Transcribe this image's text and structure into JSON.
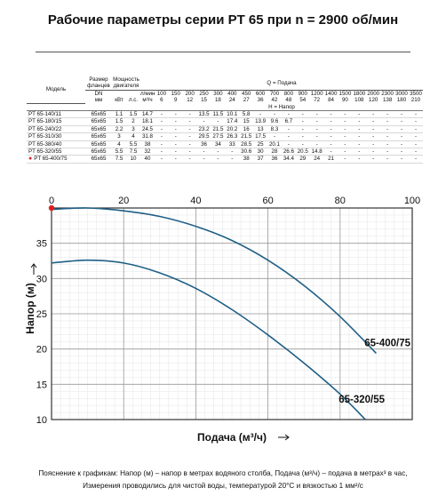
{
  "title": "Рабочие параметры серии PT 65 при n = 2900 об/мин",
  "table": {
    "col_model": "Модель",
    "col_flange": "Размер фланцев",
    "col_flange_dn": "DN",
    "col_flange_unit": "мм",
    "col_power": "Мощность двигателя",
    "col_kw": "кВт",
    "col_hp": "л.с.",
    "q_header": "Q = Подача",
    "h_header": "H = Напор",
    "row_lmin_label": "л/мин",
    "row_m3h_label": "м³/ч",
    "lmin_values": [
      "0",
      "100",
      "150",
      "200",
      "250",
      "300",
      "400",
      "450",
      "600",
      "700",
      "800",
      "900",
      "1200",
      "1400",
      "1500",
      "1800",
      "2000",
      "2300",
      "3000",
      "3500"
    ],
    "m3h_values": [
      "0",
      "6",
      "9",
      "12",
      "15",
      "18",
      "24",
      "27",
      "36",
      "42",
      "48",
      "54",
      "72",
      "84",
      "90",
      "108",
      "120",
      "138",
      "180",
      "210"
    ],
    "rows": [
      {
        "model": "PT 65-140/11",
        "flange": "65x65",
        "kw": "1.1",
        "hp": "1.5",
        "h": [
          "14.7",
          "-",
          "-",
          "-",
          "13.5",
          "11.5",
          "10.1",
          "5.8",
          "-",
          "-",
          "-",
          "-",
          "-",
          "-",
          "-",
          "-",
          "-",
          "-",
          "-",
          "-"
        ]
      },
      {
        "model": "PT 65-180/15",
        "flange": "65x65",
        "kw": "1.5",
        "hp": "2",
        "h": [
          "18.1",
          "-",
          "-",
          "-",
          "-",
          "-",
          "17.4",
          "15",
          "13.9",
          "9.6",
          "6.7",
          "-",
          "-",
          "-",
          "-",
          "-",
          "-",
          "-",
          "-",
          "-"
        ]
      },
      {
        "model": "PT 65-240/22",
        "flange": "65x65",
        "kw": "2.2",
        "hp": "3",
        "h": [
          "24.5",
          "-",
          "-",
          "-",
          "23.2",
          "21.5",
          "20.2",
          "16",
          "13",
          "8.3",
          "-",
          "-",
          "-",
          "-",
          "-",
          "-",
          "-",
          "-",
          "-",
          "-"
        ]
      },
      {
        "model": "PT 65-310/30",
        "flange": "65x65",
        "kw": "3",
        "hp": "4",
        "h": [
          "31.8",
          "-",
          "-",
          "-",
          "29.5",
          "27.5",
          "26.3",
          "21.5",
          "17.5",
          "-",
          "-",
          "-",
          "-",
          "-",
          "-",
          "-",
          "-",
          "-",
          "-",
          "-"
        ]
      },
      {
        "model": "PT 65-380/40",
        "flange": "65x65",
        "kw": "4",
        "hp": "5.5",
        "h": [
          "38",
          "-",
          "-",
          "-",
          "36",
          "34",
          "33",
          "28.5",
          "25",
          "20.1",
          "-",
          "-",
          "-",
          "-",
          "-",
          "-",
          "-",
          "-",
          "-",
          "-"
        ]
      },
      {
        "model": "PT 65-320/55",
        "flange": "65x65",
        "kw": "5.5",
        "hp": "7.5",
        "h": [
          "32",
          "-",
          "-",
          "-",
          "-",
          "-",
          "-",
          "30.6",
          "30",
          "28",
          "26.6",
          "20.5",
          "14.8",
          "-",
          "-",
          "-",
          "-",
          "-",
          "-",
          "-"
        ]
      },
      {
        "model": "PT 65-400/75",
        "flange": "65x65",
        "kw": "7.5",
        "hp": "10",
        "h": [
          "40",
          "-",
          "-",
          "-",
          "-",
          "-",
          "-",
          "38",
          "37",
          "36",
          "34.4",
          "29",
          "24",
          "21",
          "-",
          "-",
          "-",
          "-",
          "-",
          "-"
        ],
        "marked": true
      }
    ]
  },
  "chart_data": {
    "type": "line",
    "xlabel": "Подача (м³/ч)",
    "ylabel": "Напор (м)",
    "xlim": [
      0,
      100
    ],
    "ylim": [
      10,
      40
    ],
    "x_ticks": [
      "0",
      "20",
      "40",
      "60",
      "80",
      "100"
    ],
    "y_ticks": [
      "10",
      "15",
      "20",
      "25",
      "30",
      "35"
    ],
    "grid": true,
    "marker_point": {
      "x": 0,
      "y": 40
    },
    "series": [
      {
        "name": "65-400/75",
        "color": "#1f5f86",
        "x": [
          0,
          10,
          20,
          30,
          40,
          50,
          60,
          70,
          80,
          90
        ],
        "y": [
          39.8,
          40,
          39.6,
          38.8,
          37.4,
          35.4,
          32.6,
          29,
          24.6,
          19.4
        ]
      },
      {
        "name": "65-320/55",
        "color": "#1f5f86",
        "x": [
          0,
          10,
          20,
          30,
          40,
          50,
          60,
          70,
          80,
          87
        ],
        "y": [
          32.2,
          32.6,
          32.2,
          30.8,
          28.6,
          25.6,
          22,
          18,
          13.6,
          10
        ]
      }
    ]
  },
  "note": {
    "line1": "Пояснение к графикам: Напор (м) – напор в метрах водяного столба, Подача (м³/ч) – подача в метрах³ в час,",
    "line2": "Измерения проводились для чистой воды, температурой 20°С и вязкостью 1 мм²/с"
  }
}
